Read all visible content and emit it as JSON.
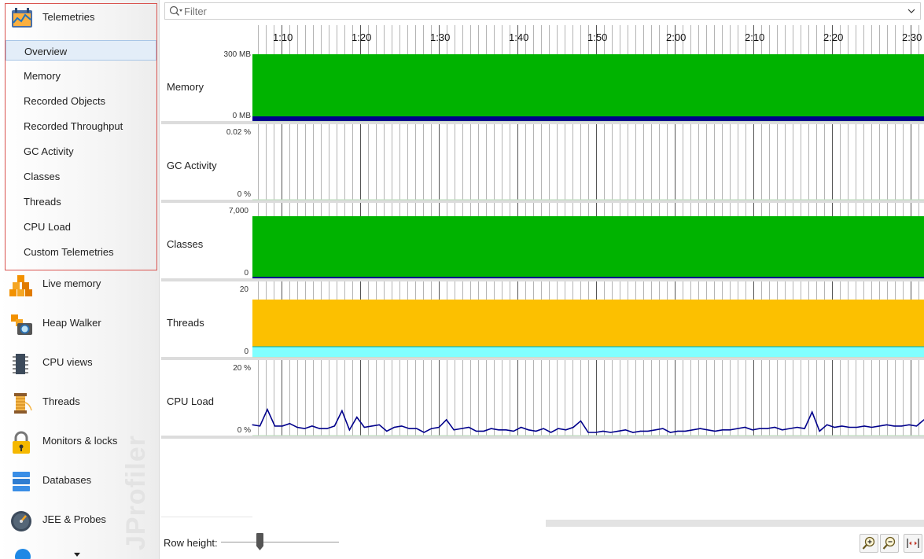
{
  "sidebar": {
    "telemetries": {
      "label": "Telemetries",
      "icon": "telemetries-icon",
      "items": [
        {
          "label": "Overview",
          "selected": true
        },
        {
          "label": "Memory"
        },
        {
          "label": "Recorded Objects"
        },
        {
          "label": "Recorded Throughput"
        },
        {
          "label": "GC Activity"
        },
        {
          "label": "Classes"
        },
        {
          "label": "Threads"
        },
        {
          "label": "CPU Load"
        },
        {
          "label": "Custom Telemetries"
        }
      ]
    },
    "sections": [
      {
        "label": "Live memory",
        "icon": "live-memory-icon"
      },
      {
        "label": "Heap Walker",
        "icon": "heap-walker-icon"
      },
      {
        "label": "CPU views",
        "icon": "cpu-views-icon"
      },
      {
        "label": "Threads",
        "icon": "threads-icon"
      },
      {
        "label": "Monitors & locks",
        "icon": "monitors-locks-icon"
      },
      {
        "label": "Databases",
        "icon": "databases-icon"
      },
      {
        "label": "JEE & Probes",
        "icon": "jee-probes-icon"
      }
    ],
    "brand": "JProfiler"
  },
  "filter": {
    "placeholder": "Filter",
    "value": ""
  },
  "timeline": {
    "ticks": [
      "1:10",
      "1:20",
      "1:30",
      "1:40",
      "1:50",
      "2:00",
      "2:10",
      "2:20",
      "2:30"
    ]
  },
  "rows": [
    {
      "label": "Memory",
      "y_max": "300 MB",
      "y_min": "0 MB"
    },
    {
      "label": "GC Activity",
      "y_max": "0.02 %",
      "y_min": "0 %"
    },
    {
      "label": "Classes",
      "y_max": "7,000",
      "y_min": "0"
    },
    {
      "label": "Threads",
      "y_max": "20",
      "y_min": "0"
    },
    {
      "label": "CPU Load",
      "y_max": "20 %",
      "y_min": "0 %"
    }
  ],
  "colors": {
    "fill_green": "#00b300",
    "fill_orange": "#fcc000",
    "fill_cyan": "#80ffff",
    "line_navy": "#00008b",
    "panel_border": "#d9534f"
  },
  "bottom": {
    "row_height_label": "Row height:"
  },
  "chart_data": {
    "type": "line",
    "title": "",
    "x_unit": "time",
    "cpu_load_percent": [
      0.6,
      0.5,
      1.8,
      0.5,
      0.5,
      0.7,
      0.4,
      0.3,
      0.5,
      0.3,
      0.3,
      0.5,
      1.7,
      0.2,
      1.2,
      0.4,
      0.5,
      0.6,
      0.1,
      0.4,
      0.5,
      0.3,
      0.3,
      0.0,
      0.3,
      0.4,
      1.0,
      0.2,
      0.3,
      0.4,
      0.1,
      0.1,
      0.3,
      0.2,
      0.2,
      0.1,
      0.4,
      0.2,
      0.1,
      0.3,
      0.0,
      0.3,
      0.2,
      0.4,
      0.9,
      0.0,
      0.0,
      0.1,
      0.0,
      0.1,
      0.2,
      0.0,
      0.1,
      0.1,
      0.2,
      0.3,
      0.0,
      0.1,
      0.1,
      0.2,
      0.3,
      0.2,
      0.1,
      0.2,
      0.2,
      0.3,
      0.4,
      0.2,
      0.3,
      0.3,
      0.4,
      0.2,
      0.3,
      0.4,
      0.3,
      1.6,
      0.1,
      0.6,
      0.4,
      0.5,
      0.4,
      0.4,
      0.5,
      0.4,
      0.5,
      0.6,
      0.5,
      0.5,
      0.6,
      0.5,
      1.0
    ]
  }
}
